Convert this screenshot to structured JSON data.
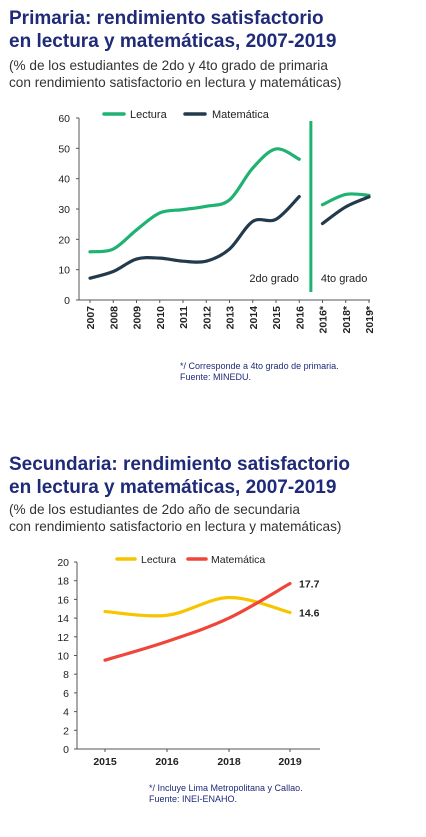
{
  "colors": {
    "title": "#1f2a78",
    "lectura_primaria": "#1fb272",
    "matematica_primaria": "#233a4d",
    "lectura_secundaria": "#f7c500",
    "matematica_secundaria": "#f0463a"
  },
  "primaria": {
    "title_line1": "Primaria: rendimiento satisfactorio",
    "title_line2": "en lectura y matemáticas, 2007-2019",
    "subtitle_line1": "(% de los estudiantes de 2do y 4to grado de primaria",
    "subtitle_line2": "con rendimiento satisfactorio en lectura y matemáticas)",
    "note_line1": "*/ Corresponde a 4to grado de primaria.",
    "note_line2": "Fuente: MINEDU."
  },
  "secundaria": {
    "title_line1": "Secundaria: rendimiento satisfactorio",
    "title_line2": "en lectura y matemáticas, 2007-2019",
    "subtitle_line1": "(% de los estudiantes de 2do año de secundaria",
    "subtitle_line2": "con rendimiento satisfactorio en lectura y matemáticas)",
    "note_line1": "*/ Incluye Lima Metropolitana y Callao.",
    "note_line2": "Fuente: INEI-ENAHO."
  },
  "chart_data": [
    {
      "type": "line",
      "title": "Primaria: rendimiento satisfactorio en lectura y matemáticas, 2007-2019",
      "categories": [
        "2007",
        "2008",
        "2009",
        "2010",
        "2011",
        "2012",
        "2013",
        "2014",
        "2015",
        "2016",
        "2016*",
        "2018*",
        "2019*"
      ],
      "ylim": [
        0,
        60
      ],
      "yticks": [
        0,
        10,
        20,
        30,
        40,
        50,
        60
      ],
      "grid": false,
      "legend": "top-left",
      "groups": [
        "2do grado",
        "4to grado"
      ],
      "series": [
        {
          "name": "Lectura",
          "color": "#1fb272",
          "values": [
            15.9,
            16.8,
            23.1,
            28.7,
            29.8,
            30.9,
            33.0,
            43.5,
            49.8,
            46.4,
            31.4,
            34.8,
            34.5
          ]
        },
        {
          "name": "Matemática",
          "color": "#233a4d",
          "values": [
            7.2,
            9.4,
            13.5,
            13.8,
            12.8,
            12.8,
            16.8,
            25.9,
            26.6,
            34.1,
            25.2,
            30.7,
            34.0
          ]
        }
      ]
    },
    {
      "type": "line",
      "title": "Secundaria: rendimiento satisfactorio en lectura y matemáticas, 2007-2019",
      "categories": [
        "2015",
        "2016",
        "2018",
        "2019"
      ],
      "ylim": [
        0,
        20
      ],
      "yticks": [
        0,
        2,
        4,
        6,
        8,
        10,
        12,
        14,
        16,
        18,
        20
      ],
      "grid": false,
      "legend": "top",
      "series": [
        {
          "name": "Lectura",
          "color": "#f7c500",
          "values": [
            14.7,
            14.3,
            16.2,
            14.6
          ],
          "end_label": "14.6"
        },
        {
          "name": "Matemática",
          "color": "#f0463a",
          "values": [
            9.5,
            11.5,
            14.0,
            17.7
          ],
          "end_label": "17.7"
        }
      ]
    }
  ]
}
